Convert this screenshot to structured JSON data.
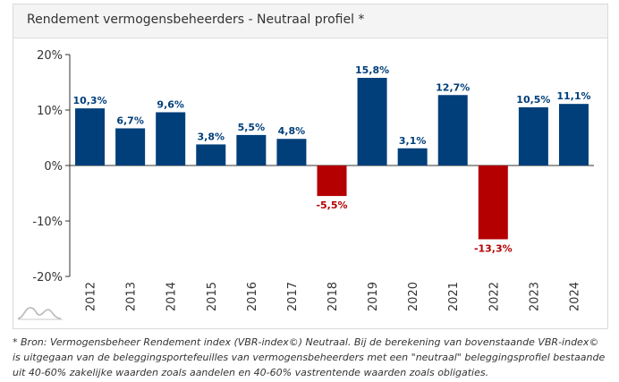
{
  "header": {
    "title": "Rendement vermogensbeheerders - Neutraal profiel *"
  },
  "chart_data": {
    "type": "bar",
    "categories": [
      "2012",
      "2013",
      "2014",
      "2015",
      "2016",
      "2017",
      "2018",
      "2019",
      "2020",
      "2021",
      "2022",
      "2023",
      "2024"
    ],
    "values": [
      10.3,
      6.7,
      9.6,
      3.8,
      5.5,
      4.8,
      -5.5,
      15.8,
      3.1,
      12.7,
      -13.3,
      10.5,
      11.1
    ],
    "data_labels": [
      "10,3%",
      "6,7%",
      "9,6%",
      "3,8%",
      "5,5%",
      "4,8%",
      "-5,5%",
      "15,8%",
      "3,1%",
      "12,7%",
      "-13,3%",
      "10,5%",
      "11,1%"
    ],
    "yticks": [
      20,
      10,
      0,
      -10,
      -20
    ],
    "ytick_labels": [
      "20%",
      "10%",
      "0%",
      "-10%",
      "-20%"
    ],
    "ylim": [
      -20,
      20
    ],
    "colors": {
      "positive": "#003f7a",
      "negative": "#b40000",
      "axis": "#333333"
    },
    "grid": false
  },
  "footnote": "* Bron: Vermogensbeheer Rendement index (VBR-index©) Neutraal. Bij de berekening van bovenstaande VBR-index© is uitgegaan van de beleggingsportefeuilles van vermogensbeheerders met een \"neutraal\" beleggingsprofiel bestaande uit 40-60% zakelijke waarden zoals aandelen en 40-60% vastrentende waarden zoals obligaties."
}
